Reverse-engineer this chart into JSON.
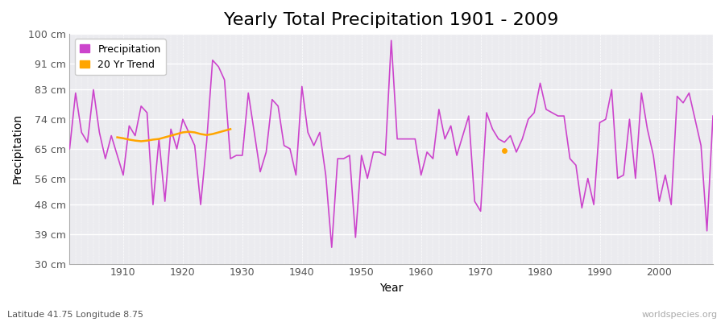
{
  "title": "Yearly Total Precipitation 1901 - 2009",
  "xlabel": "Year",
  "ylabel": "Precipitation",
  "lat_lon_label": "Latitude 41.75 Longitude 8.75",
  "watermark": "worldspecies.org",
  "years": [
    1901,
    1902,
    1903,
    1904,
    1905,
    1906,
    1907,
    1908,
    1909,
    1910,
    1911,
    1912,
    1913,
    1914,
    1915,
    1916,
    1917,
    1918,
    1919,
    1920,
    1921,
    1922,
    1923,
    1924,
    1925,
    1926,
    1927,
    1928,
    1929,
    1930,
    1931,
    1932,
    1933,
    1934,
    1935,
    1936,
    1937,
    1938,
    1939,
    1940,
    1941,
    1942,
    1943,
    1944,
    1945,
    1946,
    1947,
    1948,
    1949,
    1950,
    1951,
    1952,
    1953,
    1954,
    1955,
    1956,
    1957,
    1958,
    1959,
    1960,
    1961,
    1962,
    1963,
    1964,
    1965,
    1966,
    1967,
    1968,
    1969,
    1970,
    1971,
    1972,
    1973,
    1974,
    1975,
    1976,
    1977,
    1978,
    1979,
    1980,
    1981,
    1982,
    1983,
    1984,
    1985,
    1986,
    1987,
    1988,
    1989,
    1990,
    1991,
    1992,
    1993,
    1994,
    1995,
    1996,
    1997,
    1998,
    1999,
    2000,
    2001,
    2002,
    2003,
    2004,
    2005,
    2006,
    2007,
    2008,
    2009
  ],
  "precip": [
    65,
    82,
    70,
    67,
    83,
    70,
    62,
    69,
    63,
    57,
    72,
    69,
    78,
    76,
    48,
    68,
    49,
    71,
    65,
    74,
    70,
    66,
    48,
    67,
    92,
    90,
    86,
    62,
    63,
    63,
    82,
    70,
    58,
    64,
    80,
    78,
    66,
    65,
    57,
    84,
    70,
    66,
    70,
    57,
    35,
    62,
    62,
    63,
    38,
    63,
    56,
    64,
    64,
    63,
    98,
    68,
    68,
    68,
    68,
    57,
    64,
    62,
    77,
    68,
    72,
    63,
    69,
    75,
    49,
    46,
    76,
    71,
    68,
    67,
    69,
    64,
    68,
    74,
    76,
    85,
    77,
    76,
    75,
    75,
    62,
    60,
    47,
    56,
    48,
    73,
    74,
    83,
    56,
    57,
    74,
    56,
    82,
    71,
    63,
    49,
    57,
    48,
    81,
    79,
    82,
    74,
    66,
    40,
    75
  ],
  "trend_segment_years": [
    1909,
    1910,
    1911,
    1912,
    1913,
    1914,
    1915,
    1916,
    1917,
    1918,
    1919,
    1920,
    1921,
    1922,
    1923,
    1924,
    1925,
    1926,
    1927,
    1928
  ],
  "trend_segment_values": [
    68.5,
    68.2,
    67.8,
    67.5,
    67.3,
    67.5,
    67.8,
    68.0,
    68.5,
    69.0,
    69.5,
    70.0,
    70.2,
    70.0,
    69.5,
    69.2,
    69.5,
    70.0,
    70.5,
    71.0
  ],
  "trend_dot_year": 1974,
  "trend_dot_value": 64.5,
  "ylim": [
    30,
    100
  ],
  "yticks": [
    30,
    39,
    48,
    56,
    65,
    74,
    83,
    91,
    100
  ],
  "ytick_labels": [
    "30 cm",
    "39 cm",
    "48 cm",
    "56 cm",
    "65 cm",
    "74 cm",
    "83 cm",
    "91 cm",
    "100 cm"
  ],
  "xticks": [
    1910,
    1920,
    1930,
    1940,
    1950,
    1960,
    1970,
    1980,
    1990,
    2000
  ],
  "xlim": [
    1901,
    2009
  ],
  "precip_color": "#cc44cc",
  "trend_color": "#ffa500",
  "fig_bg_color": "#ffffff",
  "plot_bg_color": "#ebebef",
  "grid_color": "#ffffff",
  "title_fontsize": 16,
  "axis_fontsize": 10,
  "tick_fontsize": 9,
  "legend_fontsize": 9
}
